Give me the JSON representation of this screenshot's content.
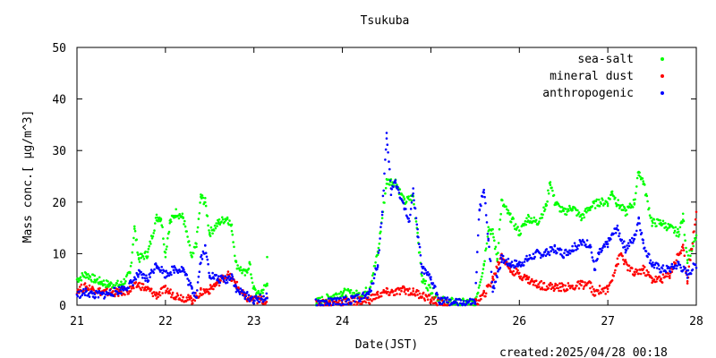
{
  "chart_data": {
    "type": "scatter",
    "title": "Tsukuba",
    "xlabel": "Date(JST)",
    "ylabel": "Mass conc.[ μg/m^3]",
    "xlim": [
      21,
      28
    ],
    "ylim": [
      0,
      50
    ],
    "x_ticks": [
      "21",
      "22",
      "23",
      "24",
      "25",
      "26",
      "27",
      "28"
    ],
    "y_ticks": [
      "0",
      "10",
      "20",
      "30",
      "40",
      "50"
    ],
    "grid": false,
    "legend_position": "top-right",
    "footer": "created:2025/04/28 00:18",
    "series": [
      {
        "name": "sea-salt",
        "color": "#00ff00",
        "points": [
          [
            21.0,
            5
          ],
          [
            21.1,
            6
          ],
          [
            21.2,
            5
          ],
          [
            21.35,
            4
          ],
          [
            21.5,
            4
          ],
          [
            21.6,
            6
          ],
          [
            21.65,
            15
          ],
          [
            21.7,
            9
          ],
          [
            21.8,
            10
          ],
          [
            21.9,
            17
          ],
          [
            21.95,
            17
          ],
          [
            22.0,
            10
          ],
          [
            22.05,
            16
          ],
          [
            22.12,
            18
          ],
          [
            22.2,
            17
          ],
          [
            22.3,
            9
          ],
          [
            22.35,
            12
          ],
          [
            22.4,
            21
          ],
          [
            22.45,
            20
          ],
          [
            22.5,
            14
          ],
          [
            22.6,
            16
          ],
          [
            22.7,
            17
          ],
          [
            22.75,
            15
          ],
          [
            22.8,
            8
          ],
          [
            22.9,
            6
          ],
          [
            22.95,
            8
          ],
          [
            23.0,
            3
          ],
          [
            23.05,
            2
          ],
          [
            23.15,
            4
          ],
          [
            23.15,
            10
          ],
          [
            23.7,
            0.5
          ],
          [
            23.85,
            1.5
          ],
          [
            24.0,
            2.5
          ],
          [
            24.2,
            2
          ],
          [
            24.3,
            3
          ],
          [
            24.4,
            10
          ],
          [
            24.5,
            24
          ],
          [
            24.6,
            24
          ],
          [
            24.7,
            20
          ],
          [
            24.8,
            21
          ],
          [
            24.85,
            14
          ],
          [
            24.9,
            5
          ],
          [
            25.0,
            3
          ],
          [
            25.1,
            1
          ],
          [
            25.3,
            0.5
          ],
          [
            25.5,
            0.5
          ],
          [
            25.6,
            8
          ],
          [
            25.65,
            15
          ],
          [
            25.7,
            14
          ],
          [
            25.75,
            9
          ],
          [
            25.8,
            20
          ],
          [
            25.9,
            17
          ],
          [
            26.0,
            14
          ],
          [
            26.1,
            17
          ],
          [
            26.2,
            16
          ],
          [
            26.3,
            19
          ],
          [
            26.35,
            24
          ],
          [
            26.4,
            20
          ],
          [
            26.5,
            18
          ],
          [
            26.6,
            19
          ],
          [
            26.7,
            17
          ],
          [
            26.8,
            19
          ],
          [
            26.9,
            20
          ],
          [
            27.0,
            20
          ],
          [
            27.05,
            22
          ],
          [
            27.1,
            20
          ],
          [
            27.2,
            18
          ],
          [
            27.3,
            20
          ],
          [
            27.35,
            26
          ],
          [
            27.4,
            24
          ],
          [
            27.5,
            16
          ],
          [
            27.6,
            16
          ],
          [
            27.7,
            15
          ],
          [
            27.8,
            14
          ],
          [
            27.85,
            17
          ],
          [
            27.9,
            9
          ],
          [
            28.0,
            13
          ]
        ]
      },
      {
        "name": "mineral dust",
        "color": "#ff0000",
        "points": [
          [
            21.0,
            3
          ],
          [
            21.1,
            3.5
          ],
          [
            21.2,
            3
          ],
          [
            21.3,
            2.5
          ],
          [
            21.5,
            2.5
          ],
          [
            21.6,
            3
          ],
          [
            21.7,
            4
          ],
          [
            21.8,
            3
          ],
          [
            21.9,
            2
          ],
          [
            22.0,
            3
          ],
          [
            22.1,
            2
          ],
          [
            22.2,
            1.5
          ],
          [
            22.3,
            1
          ],
          [
            22.4,
            2.5
          ],
          [
            22.5,
            3
          ],
          [
            22.6,
            4.5
          ],
          [
            22.7,
            6
          ],
          [
            22.8,
            4
          ],
          [
            22.9,
            1.5
          ],
          [
            23.0,
            1
          ],
          [
            23.15,
            1
          ],
          [
            23.7,
            0.3
          ],
          [
            23.9,
            0.5
          ],
          [
            24.1,
            0.8
          ],
          [
            24.3,
            1
          ],
          [
            24.4,
            2
          ],
          [
            24.5,
            2.5
          ],
          [
            24.6,
            2.5
          ],
          [
            24.7,
            3
          ],
          [
            24.8,
            2.5
          ],
          [
            24.9,
            2
          ],
          [
            25.0,
            1
          ],
          [
            25.2,
            0.2
          ],
          [
            25.5,
            0.3
          ],
          [
            25.6,
            2
          ],
          [
            25.7,
            5
          ],
          [
            25.8,
            10
          ],
          [
            25.85,
            8
          ],
          [
            25.9,
            7
          ],
          [
            26.0,
            6
          ],
          [
            26.1,
            5
          ],
          [
            26.2,
            4
          ],
          [
            26.4,
            3.5
          ],
          [
            26.6,
            3.5
          ],
          [
            26.7,
            4
          ],
          [
            26.8,
            4
          ],
          [
            26.85,
            2
          ],
          [
            26.9,
            3
          ],
          [
            27.0,
            3
          ],
          [
            27.1,
            8
          ],
          [
            27.15,
            10
          ],
          [
            27.2,
            8
          ],
          [
            27.3,
            6
          ],
          [
            27.4,
            7
          ],
          [
            27.5,
            5
          ],
          [
            27.6,
            5
          ],
          [
            27.7,
            6
          ],
          [
            27.8,
            10
          ],
          [
            27.85,
            11
          ],
          [
            27.9,
            5
          ],
          [
            28.0,
            18
          ]
        ]
      },
      {
        "name": "anthropogenic",
        "color": "#0000ff",
        "points": [
          [
            21.0,
            2
          ],
          [
            21.1,
            2.5
          ],
          [
            21.2,
            2
          ],
          [
            21.3,
            2
          ],
          [
            21.5,
            3
          ],
          [
            21.6,
            4
          ],
          [
            21.7,
            6
          ],
          [
            21.8,
            5
          ],
          [
            21.9,
            8
          ],
          [
            22.0,
            6
          ],
          [
            22.1,
            7
          ],
          [
            22.2,
            7
          ],
          [
            22.3,
            3
          ],
          [
            22.35,
            2
          ],
          [
            22.4,
            9
          ],
          [
            22.45,
            11
          ],
          [
            22.5,
            6
          ],
          [
            22.6,
            5
          ],
          [
            22.7,
            5
          ],
          [
            22.75,
            6
          ],
          [
            22.8,
            3
          ],
          [
            22.9,
            2
          ],
          [
            23.0,
            1
          ],
          [
            23.15,
            1.5
          ],
          [
            23.7,
            0.4
          ],
          [
            23.9,
            0.6
          ],
          [
            24.1,
            1
          ],
          [
            24.3,
            2
          ],
          [
            24.4,
            8
          ],
          [
            24.45,
            18
          ],
          [
            24.5,
            33
          ],
          [
            24.55,
            22
          ],
          [
            24.6,
            24
          ],
          [
            24.7,
            19
          ],
          [
            24.75,
            16
          ],
          [
            24.8,
            22
          ],
          [
            24.85,
            14
          ],
          [
            24.9,
            7
          ],
          [
            25.0,
            5
          ],
          [
            25.1,
            1
          ],
          [
            25.3,
            0.4
          ],
          [
            25.5,
            0.5
          ],
          [
            25.55,
            19
          ],
          [
            25.6,
            22
          ],
          [
            25.65,
            13
          ],
          [
            25.7,
            3
          ],
          [
            25.8,
            9
          ],
          [
            25.9,
            8
          ],
          [
            26.0,
            8
          ],
          [
            26.1,
            9
          ],
          [
            26.2,
            10
          ],
          [
            26.3,
            10
          ],
          [
            26.4,
            11
          ],
          [
            26.5,
            10
          ],
          [
            26.6,
            11
          ],
          [
            26.7,
            12
          ],
          [
            26.8,
            12
          ],
          [
            26.85,
            7
          ],
          [
            26.9,
            10
          ],
          [
            27.0,
            12
          ],
          [
            27.1,
            15
          ],
          [
            27.2,
            11
          ],
          [
            27.3,
            13
          ],
          [
            27.35,
            17
          ],
          [
            27.4,
            12
          ],
          [
            27.5,
            8
          ],
          [
            27.6,
            7
          ],
          [
            27.7,
            7
          ],
          [
            27.8,
            8
          ],
          [
            27.9,
            6
          ],
          [
            28.0,
            8
          ]
        ]
      }
    ]
  }
}
